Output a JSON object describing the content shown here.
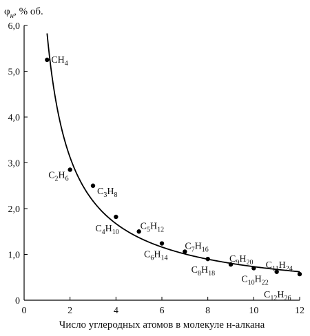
{
  "chart_data": {
    "type": "scatter",
    "title": "",
    "ylabel": {
      "main": "φ",
      "sub": "н",
      "suffix": ", % об."
    },
    "xlabel": "Число углеродных атомов в молекуле н-алкана",
    "xlim": [
      0,
      12
    ],
    "ylim": [
      0,
      6
    ],
    "x_ticks": [
      "0",
      "2",
      "4",
      "6",
      "8",
      "10",
      "12"
    ],
    "y_ticks": [
      "0",
      "1,0",
      "2,0",
      "3,0",
      "4,0",
      "5,0",
      "6,0"
    ],
    "grid": false,
    "legend": "none",
    "trend_line": "fitted smooth curve through points",
    "points": [
      {
        "x": 1,
        "y": 5.25,
        "label": [
          [
            "C",
            ""
          ],
          [
            "H",
            "4"
          ]
        ]
      },
      {
        "x": 2,
        "y": 2.85,
        "label": [
          [
            "C",
            "2"
          ],
          [
            "H",
            "6"
          ]
        ]
      },
      {
        "x": 3,
        "y": 2.5,
        "label": [
          [
            "C",
            "3"
          ],
          [
            "H",
            "8"
          ]
        ]
      },
      {
        "x": 4,
        "y": 1.82,
        "label": [
          [
            "C",
            "4"
          ],
          [
            "H",
            "10"
          ]
        ]
      },
      {
        "x": 5,
        "y": 1.5,
        "label": [
          [
            "C",
            "5"
          ],
          [
            "H",
            "12"
          ]
        ]
      },
      {
        "x": 6,
        "y": 1.24,
        "label": [
          [
            "C",
            "6"
          ],
          [
            "H",
            "14"
          ]
        ]
      },
      {
        "x": 7,
        "y": 1.06,
        "label": [
          [
            "C",
            "7"
          ],
          [
            "H",
            "16"
          ]
        ]
      },
      {
        "x": 8,
        "y": 0.9,
        "label": [
          [
            "C",
            "8"
          ],
          [
            "H",
            "18"
          ]
        ]
      },
      {
        "x": 9,
        "y": 0.78,
        "label": [
          [
            "C",
            "9"
          ],
          [
            "H",
            "20"
          ]
        ]
      },
      {
        "x": 10,
        "y": 0.7,
        "label": [
          [
            "C",
            "10"
          ],
          [
            "H",
            "22"
          ]
        ]
      },
      {
        "x": 11,
        "y": 0.62,
        "label": [
          [
            "C",
            "11"
          ],
          [
            "H",
            "24"
          ]
        ]
      },
      {
        "x": 12,
        "y": 0.57,
        "label": [
          [
            "C",
            "12"
          ],
          [
            "H",
            "26"
          ]
        ]
      }
    ]
  }
}
